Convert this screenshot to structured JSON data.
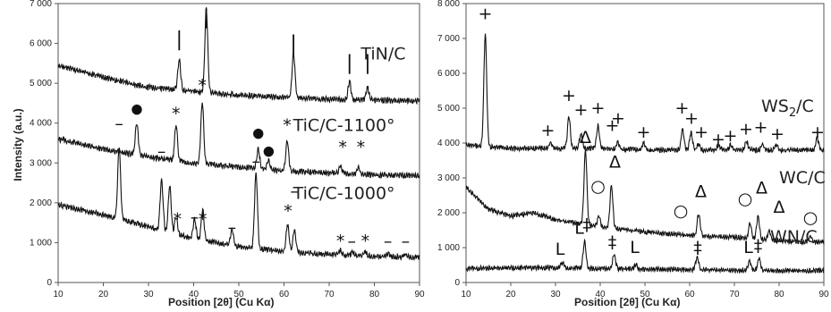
{
  "chart_data": [
    {
      "type": "line",
      "xlabel": "Position [2θ] (Cu Kα)",
      "ylabel": "Intensity (a.u.)",
      "xlim": [
        10,
        90
      ],
      "ylim": [
        0,
        7000
      ],
      "xticks": [
        "10",
        "20",
        "30",
        "40",
        "50",
        "60",
        "70",
        "80",
        "90"
      ],
      "yticks": [
        "0",
        "1 000",
        "2 000",
        "3 000",
        "4 000",
        "5 000",
        "6 000",
        "7 000"
      ],
      "grid": false,
      "series": [
        {
          "name": "TiN/C",
          "baseline": [
            [
              10,
              5450
            ],
            [
              20,
              5150
            ],
            [
              30,
              4900
            ],
            [
              40,
              4800
            ],
            [
              50,
              4700
            ],
            [
              60,
              4650
            ],
            [
              70,
              4600
            ],
            [
              80,
              4580
            ],
            [
              90,
              4560
            ]
          ],
          "peaks": [
            [
              36.8,
              750
            ],
            [
              42.8,
              2100
            ],
            [
              62.1,
              1100
            ],
            [
              74.5,
              450
            ],
            [
              78.5,
              300
            ]
          ],
          "markers": [
            {
              "symbol": "|",
              "x": 36.8,
              "y": 5950
            },
            {
              "symbol": "|",
              "x": 42.8,
              "y": 6500
            },
            {
              "symbol": "|",
              "x": 62.1,
              "y": 5850
            },
            {
              "symbol": "|",
              "x": 74.5,
              "y": 5350
            },
            {
              "symbol": "|",
              "x": 78.5,
              "y": 5350
            }
          ]
        },
        {
          "name": "TiC/C-1100°",
          "baseline": [
            [
              10,
              3600
            ],
            [
              20,
              3350
            ],
            [
              30,
              3150
            ],
            [
              40,
              3000
            ],
            [
              50,
              2900
            ],
            [
              60,
              2800
            ],
            [
              70,
              2750
            ],
            [
              80,
              2700
            ],
            [
              90,
              2680
            ]
          ],
          "peaks": [
            [
              27.4,
              800
            ],
            [
              36.1,
              900
            ],
            [
              41.9,
              1550
            ],
            [
              54.3,
              500
            ],
            [
              56.6,
              250
            ],
            [
              60.7,
              750
            ],
            [
              72.5,
              200
            ],
            [
              76.5,
              150
            ]
          ],
          "markers": [
            {
              "symbol": "●",
              "x": 27.4,
              "y": 4250
            },
            {
              "symbol": "*",
              "x": 36.1,
              "y": 4100
            },
            {
              "symbol": "*",
              "x": 41.9,
              "y": 4800
            },
            {
              "symbol": "●",
              "x": 54.3,
              "y": 3650
            },
            {
              "symbol": "●",
              "x": 56.6,
              "y": 3200
            },
            {
              "symbol": "*",
              "x": 60.7,
              "y": 3800
            },
            {
              "symbol": "*",
              "x": 73.0,
              "y": 3250
            },
            {
              "symbol": "*",
              "x": 77.0,
              "y": 3250
            }
          ]
        },
        {
          "name": "TiC/C-1000°",
          "baseline": [
            [
              10,
              1950
            ],
            [
              20,
              1700
            ],
            [
              30,
              1400
            ],
            [
              40,
              1100
            ],
            [
              50,
              900
            ],
            [
              60,
              780
            ],
            [
              70,
              700
            ],
            [
              80,
              660
            ],
            [
              90,
              630
            ]
          ],
          "peaks": [
            [
              23.5,
              1800
            ],
            [
              32.9,
              1250
            ],
            [
              34.7,
              1150
            ],
            [
              36.1,
              400
            ],
            [
              40.2,
              500
            ],
            [
              42.0,
              750
            ],
            [
              48.5,
              400
            ],
            [
              53.8,
              1900
            ],
            [
              60.8,
              700
            ],
            [
              62.3,
              550
            ],
            [
              72.5,
              120
            ],
            [
              75.2,
              100
            ],
            [
              78.0,
              100
            ],
            [
              83.0,
              60
            ],
            [
              86.9,
              60
            ]
          ],
          "markers": [
            {
              "symbol": "–",
              "x": 23.5,
              "y": 3850
            },
            {
              "symbol": "–",
              "x": 32.9,
              "y": 3150
            },
            {
              "symbol": "–",
              "x": 34.7,
              "y": 3000
            },
            {
              "symbol": "*",
              "x": 36.4,
              "y": 1450
            },
            {
              "symbol": "–",
              "x": 40.2,
              "y": 1500
            },
            {
              "symbol": "*",
              "x": 42.0,
              "y": 1450
            },
            {
              "symbol": "–",
              "x": 48.5,
              "y": 1250
            },
            {
              "symbol": "–",
              "x": 53.8,
              "y": 2900
            },
            {
              "symbol": "*",
              "x": 60.9,
              "y": 1650
            },
            {
              "symbol": "–",
              "x": 62.3,
              "y": 2150
            },
            {
              "symbol": "*",
              "x": 72.5,
              "y": 900
            },
            {
              "symbol": "–",
              "x": 75.0,
              "y": 900
            },
            {
              "symbol": "*",
              "x": 78.0,
              "y": 900
            },
            {
              "symbol": "–",
              "x": 83.0,
              "y": 900
            },
            {
              "symbol": "–",
              "x": 86.9,
              "y": 900
            }
          ]
        }
      ],
      "labels": [
        {
          "text": "TiN/C",
          "x": 77,
          "y": 5600
        },
        {
          "text": "TiC/C-1100°",
          "x": 62,
          "y": 3800
        },
        {
          "text": "TiC/C-1000°",
          "x": 62,
          "y": 2100
        }
      ]
    },
    {
      "type": "line",
      "xlabel": "Position [2θ] (Cu Kα)",
      "ylabel": "",
      "xlim": [
        10,
        90
      ],
      "ylim": [
        0,
        8000
      ],
      "xticks": [
        "10",
        "20",
        "30",
        "40",
        "50",
        "60",
        "70",
        "80",
        "90"
      ],
      "yticks": [
        "0",
        "1 000",
        "2 000",
        "3 000",
        "4 000",
        "5 000",
        "6 000",
        "7 000",
        "8 000"
      ],
      "grid": false,
      "series": [
        {
          "name": "WS2/C",
          "baseline": [
            [
              10,
              3950
            ],
            [
              20,
              3850
            ],
            [
              30,
              3850
            ],
            [
              40,
              3850
            ],
            [
              50,
              3800
            ],
            [
              60,
              3800
            ],
            [
              70,
              3800
            ],
            [
              80,
              3800
            ],
            [
              90,
              3800
            ]
          ],
          "peaks": [
            [
              14.3,
              3200
            ],
            [
              28.9,
              150
            ],
            [
              33.0,
              900
            ],
            [
              35.7,
              400
            ],
            [
              39.5,
              650
            ],
            [
              43.9,
              200
            ],
            [
              49.7,
              200
            ],
            [
              58.4,
              600
            ],
            [
              60.3,
              500
            ],
            [
              62.0,
              150
            ],
            [
              66.5,
              150
            ],
            [
              69.2,
              150
            ],
            [
              72.7,
              250
            ],
            [
              76.3,
              150
            ],
            [
              79.4,
              150
            ],
            [
              88.5,
              350
            ]
          ],
          "markers": [
            {
              "symbol": "+",
              "x": 14.3,
              "y": 7550
            },
            {
              "symbol": "+",
              "x": 28.3,
              "y": 4200
            },
            {
              "symbol": "+",
              "x": 33.0,
              "y": 5200
            },
            {
              "symbol": "+",
              "x": 35.7,
              "y": 4800
            },
            {
              "symbol": "+",
              "x": 39.5,
              "y": 4850
            },
            {
              "symbol": "+",
              "x": 42.7,
              "y": 4350
            },
            {
              "symbol": "+",
              "x": 44.0,
              "y": 4550
            },
            {
              "symbol": "+",
              "x": 49.7,
              "y": 4150
            },
            {
              "symbol": "+",
              "x": 58.3,
              "y": 4850
            },
            {
              "symbol": "+",
              "x": 60.4,
              "y": 4550
            },
            {
              "symbol": "+",
              "x": 62.6,
              "y": 4150
            },
            {
              "symbol": "+",
              "x": 66.4,
              "y": 3950
            },
            {
              "symbol": "+",
              "x": 69.1,
              "y": 4050
            },
            {
              "symbol": "+",
              "x": 72.6,
              "y": 4250
            },
            {
              "symbol": "+",
              "x": 75.9,
              "y": 4300
            },
            {
              "symbol": "+",
              "x": 79.6,
              "y": 4100
            },
            {
              "symbol": "+",
              "x": 88.6,
              "y": 4150
            }
          ]
        },
        {
          "name": "WC/C",
          "baseline": [
            [
              10,
              2750
            ],
            [
              15,
              2100
            ],
            [
              20,
              1900
            ],
            [
              25,
              2000
            ],
            [
              30,
              1800
            ],
            [
              40,
              1600
            ],
            [
              50,
              1450
            ],
            [
              60,
              1350
            ],
            [
              70,
              1300
            ],
            [
              80,
              1200
            ],
            [
              90,
              1150
            ]
          ],
          "peaks": [
            [
              36.7,
              2100
            ],
            [
              42.5,
              1200
            ],
            [
              39.7,
              300
            ],
            [
              62.0,
              650
            ],
            [
              73.5,
              450
            ],
            [
              75.3,
              650
            ],
            [
              77.8,
              250
            ],
            [
              87.0,
              150
            ]
          ],
          "markers": [
            {
              "symbol": "Δ",
              "x": 36.7,
              "y": 4000
            },
            {
              "symbol": "Δ",
              "x": 43.3,
              "y": 3300
            },
            {
              "symbol": "○",
              "x": 39.5,
              "y": 2600
            },
            {
              "symbol": "Δ",
              "x": 62.5,
              "y": 2450
            },
            {
              "symbol": "○",
              "x": 58.0,
              "y": 1900
            },
            {
              "symbol": "Δ",
              "x": 76.1,
              "y": 2550
            },
            {
              "symbol": "○",
              "x": 72.4,
              "y": 2250
            },
            {
              "symbol": "Δ",
              "x": 80.0,
              "y": 2000
            },
            {
              "symbol": "○",
              "x": 87.0,
              "y": 1700
            }
          ]
        },
        {
          "name": "WN/C",
          "baseline": [
            [
              10,
              400
            ],
            [
              20,
              420
            ],
            [
              30,
              420
            ],
            [
              40,
              400
            ],
            [
              50,
              380
            ],
            [
              60,
              370
            ],
            [
              70,
              350
            ],
            [
              80,
              340
            ],
            [
              90,
              340
            ]
          ],
          "peaks": [
            [
              31.5,
              150
            ],
            [
              36.5,
              750
            ],
            [
              43.1,
              400
            ],
            [
              48.0,
              120
            ],
            [
              61.7,
              350
            ],
            [
              73.4,
              280
            ],
            [
              75.5,
              350
            ]
          ],
          "markers": [
            {
              "symbol": "L",
              "x": 31.0,
              "y": 800
            },
            {
              "symbol": "L",
              "x": 35.3,
              "y": 1400
            },
            {
              "symbol": "‡",
              "x": 37.0,
              "y": 1500
            },
            {
              "symbol": "‡",
              "x": 42.7,
              "y": 1000
            },
            {
              "symbol": "L",
              "x": 47.7,
              "y": 850
            },
            {
              "symbol": "‡",
              "x": 61.8,
              "y": 850
            },
            {
              "symbol": "L",
              "x": 73.1,
              "y": 850
            },
            {
              "symbol": "‡",
              "x": 75.3,
              "y": 900
            }
          ]
        }
      ],
      "labels": [
        {
          "text": "WS",
          "sub": "2",
          "tail": "/C",
          "x": 76,
          "y": 4900
        },
        {
          "text": "WC/C",
          "x": 80,
          "y": 2850
        },
        {
          "text": "WN/C",
          "x": 78,
          "y": 1150
        }
      ]
    }
  ]
}
